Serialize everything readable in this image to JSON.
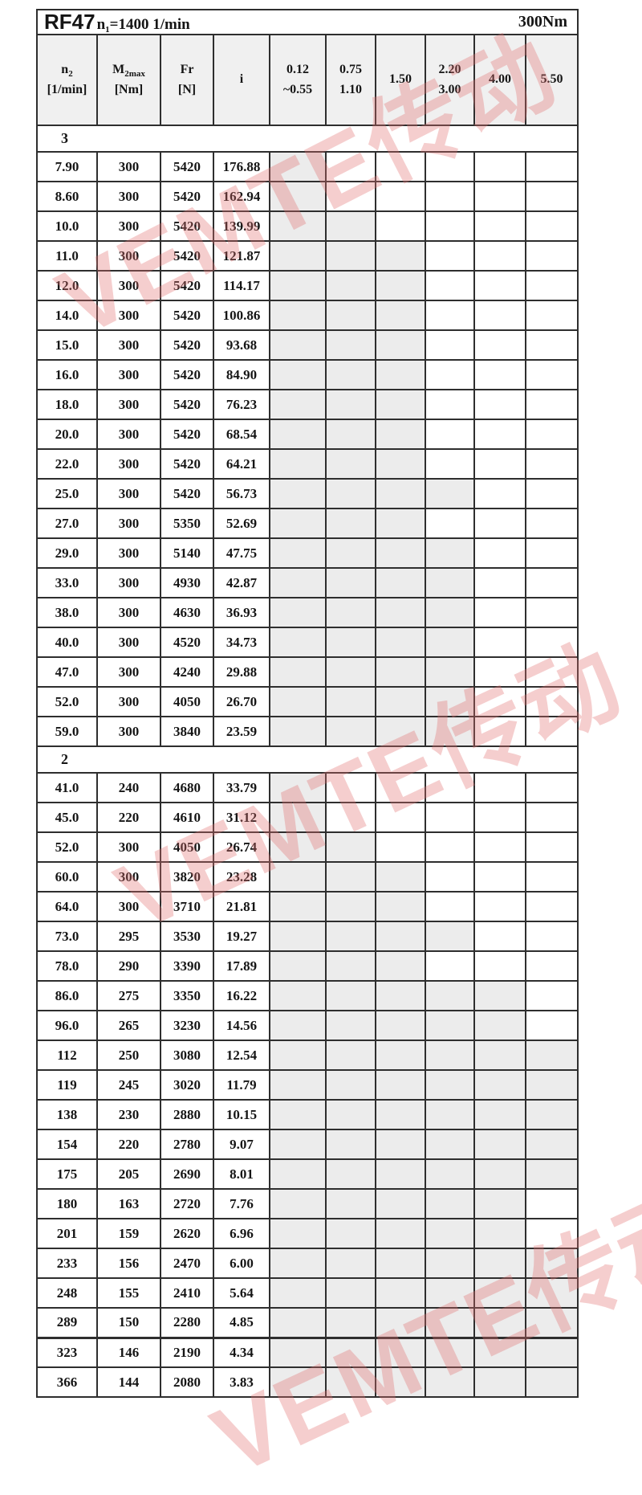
{
  "title": {
    "model": "RF47",
    "speed_sym": "n",
    "speed_sub": "1",
    "speed_rest": "=1400 1/min",
    "torque": "300Nm"
  },
  "header": {
    "n2": {
      "sym": "n",
      "sub": "2",
      "unit": "[1/min]"
    },
    "m2max": {
      "sym": "M",
      "sub": "2max",
      "unit": "[Nm]"
    },
    "fr": {
      "sym": "Fr",
      "unit": "[N]"
    },
    "ratio": {
      "sym": "i"
    },
    "powers": [
      {
        "line1": "0.12",
        "line2": "~0.55"
      },
      {
        "line1": "0.75",
        "line2": "1.10"
      },
      {
        "line1": "1.50",
        "line2": ""
      },
      {
        "line1": "2.20",
        "line2": "3.00"
      },
      {
        "line1": "4.00",
        "line2": ""
      },
      {
        "line1": "5.50",
        "line2": ""
      }
    ]
  },
  "sections": [
    {
      "label": "3",
      "rows": [
        {
          "n2": "7.90",
          "m2max": "300",
          "fr": "5420",
          "i": "176.88",
          "p": [
            1,
            0,
            0,
            0,
            0,
            0
          ]
        },
        {
          "n2": "8.60",
          "m2max": "300",
          "fr": "5420",
          "i": "162.94",
          "p": [
            1,
            0,
            0,
            0,
            0,
            0
          ]
        },
        {
          "n2": "10.0",
          "m2max": "300",
          "fr": "5420",
          "i": "139.99",
          "p": [
            1,
            1,
            0,
            0,
            0,
            0
          ]
        },
        {
          "n2": "11.0",
          "m2max": "300",
          "fr": "5420",
          "i": "121.87",
          "p": [
            1,
            1,
            1,
            0,
            0,
            0
          ]
        },
        {
          "n2": "12.0",
          "m2max": "300",
          "fr": "5420",
          "i": "114.17",
          "p": [
            1,
            1,
            1,
            0,
            0,
            0
          ]
        },
        {
          "n2": "14.0",
          "m2max": "300",
          "fr": "5420",
          "i": "100.86",
          "p": [
            1,
            1,
            1,
            0,
            0,
            0
          ]
        },
        {
          "n2": "15.0",
          "m2max": "300",
          "fr": "5420",
          "i": "93.68",
          "p": [
            1,
            1,
            1,
            0,
            0,
            0
          ]
        },
        {
          "n2": "16.0",
          "m2max": "300",
          "fr": "5420",
          "i": "84.90",
          "p": [
            1,
            1,
            1,
            0,
            0,
            0
          ]
        },
        {
          "n2": "18.0",
          "m2max": "300",
          "fr": "5420",
          "i": "76.23",
          "p": [
            1,
            1,
            1,
            0,
            0,
            0
          ]
        },
        {
          "n2": "20.0",
          "m2max": "300",
          "fr": "5420",
          "i": "68.54",
          "p": [
            1,
            1,
            1,
            0,
            0,
            0
          ]
        },
        {
          "n2": "22.0",
          "m2max": "300",
          "fr": "5420",
          "i": "64.21",
          "p": [
            1,
            1,
            1,
            0,
            0,
            0
          ]
        },
        {
          "n2": "25.0",
          "m2max": "300",
          "fr": "5420",
          "i": "56.73",
          "p": [
            1,
            1,
            1,
            1,
            0,
            0
          ]
        },
        {
          "n2": "27.0",
          "m2max": "300",
          "fr": "5350",
          "i": "52.69",
          "p": [
            1,
            1,
            1,
            0,
            0,
            0
          ]
        },
        {
          "n2": "29.0",
          "m2max": "300",
          "fr": "5140",
          "i": "47.75",
          "p": [
            1,
            1,
            1,
            1,
            0,
            0
          ]
        },
        {
          "n2": "33.0",
          "m2max": "300",
          "fr": "4930",
          "i": "42.87",
          "p": [
            1,
            1,
            1,
            1,
            0,
            0
          ]
        },
        {
          "n2": "38.0",
          "m2max": "300",
          "fr": "4630",
          "i": "36.93",
          "p": [
            1,
            1,
            1,
            1,
            0,
            0
          ]
        },
        {
          "n2": "40.0",
          "m2max": "300",
          "fr": "4520",
          "i": "34.73",
          "p": [
            1,
            1,
            1,
            1,
            0,
            0
          ]
        },
        {
          "n2": "47.0",
          "m2max": "300",
          "fr": "4240",
          "i": "29.88",
          "p": [
            1,
            1,
            1,
            1,
            0,
            0
          ]
        },
        {
          "n2": "52.0",
          "m2max": "300",
          "fr": "4050",
          "i": "26.70",
          "p": [
            1,
            1,
            1,
            1,
            0,
            0
          ]
        },
        {
          "n2": "59.0",
          "m2max": "300",
          "fr": "3840",
          "i": "23.59",
          "p": [
            1,
            1,
            1,
            1,
            0,
            0
          ]
        }
      ]
    },
    {
      "label": "2",
      "rows": [
        {
          "n2": "41.0",
          "m2max": "240",
          "fr": "4680",
          "i": "33.79",
          "p": [
            1,
            0,
            0,
            0,
            0,
            0
          ]
        },
        {
          "n2": "45.0",
          "m2max": "220",
          "fr": "4610",
          "i": "31.12",
          "p": [
            1,
            0,
            0,
            0,
            0,
            0
          ]
        },
        {
          "n2": "52.0",
          "m2max": "300",
          "fr": "4050",
          "i": "26.74",
          "p": [
            1,
            1,
            0,
            0,
            0,
            0
          ]
        },
        {
          "n2": "60.0",
          "m2max": "300",
          "fr": "3820",
          "i": "23.28",
          "p": [
            1,
            1,
            1,
            0,
            0,
            0
          ]
        },
        {
          "n2": "64.0",
          "m2max": "300",
          "fr": "3710",
          "i": "21.81",
          "p": [
            1,
            1,
            1,
            0,
            0,
            0
          ]
        },
        {
          "n2": "73.0",
          "m2max": "295",
          "fr": "3530",
          "i": "19.27",
          "p": [
            1,
            1,
            1,
            1,
            0,
            0
          ]
        },
        {
          "n2": "78.0",
          "m2max": "290",
          "fr": "3390",
          "i": "17.89",
          "p": [
            1,
            1,
            1,
            0,
            0,
            0
          ]
        },
        {
          "n2": "86.0",
          "m2max": "275",
          "fr": "3350",
          "i": "16.22",
          "p": [
            1,
            1,
            1,
            1,
            1,
            0
          ]
        },
        {
          "n2": "96.0",
          "m2max": "265",
          "fr": "3230",
          "i": "14.56",
          "p": [
            1,
            1,
            1,
            1,
            1,
            0
          ]
        },
        {
          "n2": "112",
          "m2max": "250",
          "fr": "3080",
          "i": "12.54",
          "p": [
            1,
            1,
            1,
            1,
            1,
            1
          ]
        },
        {
          "n2": "119",
          "m2max": "245",
          "fr": "3020",
          "i": "11.79",
          "p": [
            1,
            1,
            1,
            1,
            1,
            1
          ]
        },
        {
          "n2": "138",
          "m2max": "230",
          "fr": "2880",
          "i": "10.15",
          "p": [
            1,
            1,
            1,
            1,
            1,
            1
          ]
        },
        {
          "n2": "154",
          "m2max": "220",
          "fr": "2780",
          "i": "9.07",
          "p": [
            1,
            1,
            1,
            1,
            1,
            1
          ]
        },
        {
          "n2": "175",
          "m2max": "205",
          "fr": "2690",
          "i": "8.01",
          "p": [
            1,
            1,
            1,
            1,
            1,
            1
          ]
        },
        {
          "n2": "180",
          "m2max": "163",
          "fr": "2720",
          "i": "7.76",
          "p": [
            1,
            1,
            1,
            1,
            1,
            0
          ]
        },
        {
          "n2": "201",
          "m2max": "159",
          "fr": "2620",
          "i": "6.96",
          "p": [
            1,
            1,
            1,
            1,
            1,
            0
          ]
        },
        {
          "n2": "233",
          "m2max": "156",
          "fr": "2470",
          "i": "6.00",
          "p": [
            1,
            1,
            1,
            1,
            1,
            1
          ]
        },
        {
          "n2": "248",
          "m2max": "155",
          "fr": "2410",
          "i": "5.64",
          "p": [
            1,
            1,
            1,
            1,
            1,
            1
          ]
        },
        {
          "n2": "289",
          "m2max": "150",
          "fr": "2280",
          "i": "4.85",
          "p": [
            1,
            1,
            1,
            1,
            1,
            1
          ]
        },
        {
          "n2": "323",
          "m2max": "146",
          "fr": "2190",
          "i": "4.34",
          "p": [
            1,
            1,
            1,
            1,
            1,
            1
          ]
        },
        {
          "n2": "366",
          "m2max": "144",
          "fr": "2080",
          "i": "3.83",
          "p": [
            1,
            1,
            1,
            1,
            1,
            1
          ]
        }
      ]
    }
  ],
  "watermark": {
    "text": "VEMTE传动"
  },
  "colors": {
    "shaded_cell": "#ececec",
    "header_bg": "#f0f0f0",
    "border": "#2e2e2e",
    "watermark_pink": "#e27070"
  }
}
